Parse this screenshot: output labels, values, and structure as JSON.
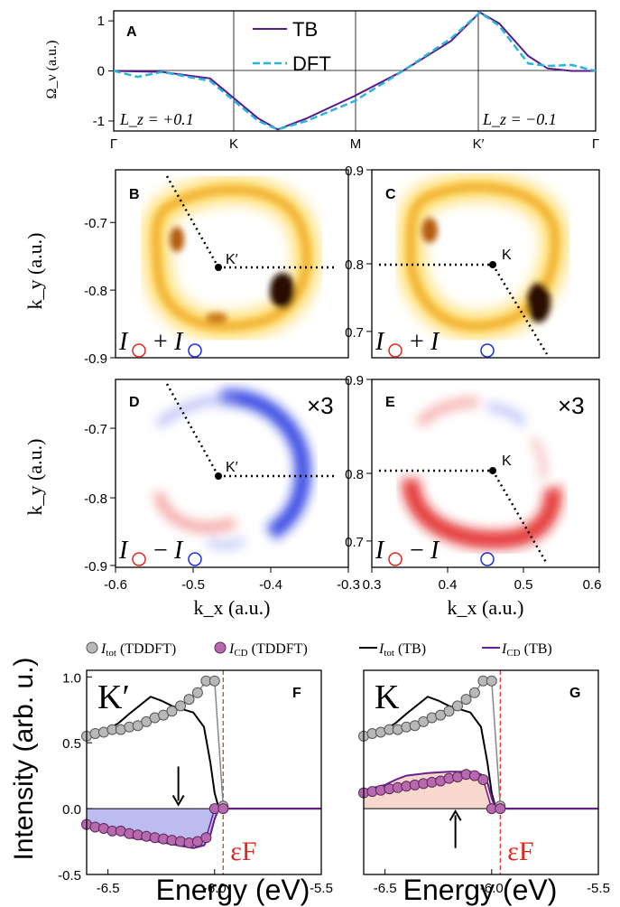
{
  "colors": {
    "tb": "#5b1a8a",
    "dft": "#29b5dd",
    "cd_tb": "#6a1f8f",
    "cd_fill_neg": "#6b6be0",
    "cd_fill_pos": "#f0a98f",
    "grey_marker": "#b8b8b8",
    "pink_marker": "#b768ae",
    "fermi": "#e0281e",
    "blue": "#1a2fe0",
    "red": "#e01818"
  },
  "chart_data": [
    {
      "panel": "A",
      "type": "line",
      "ylabel": "Ω_ν (a.u.)",
      "ylim": [
        -1.2,
        1.2
      ],
      "yticks": [
        "1",
        "0",
        "-1"
      ],
      "xticks": [
        "Γ",
        "K",
        "M",
        "K′",
        "Γ"
      ],
      "annotations": {
        "left": "L_z = +0.1",
        "right": "L_z = −0.1"
      },
      "series": [
        {
          "name": "TB",
          "x": [
            0,
            0.1,
            0.2,
            0.3,
            0.34,
            0.4,
            0.5,
            0.6,
            0.7,
            0.76,
            0.8,
            0.86,
            0.9,
            0.95,
            1
          ],
          "y": [
            0,
            -0.02,
            -0.15,
            -0.95,
            -1.17,
            -0.95,
            -0.5,
            0,
            0.6,
            1.17,
            0.95,
            0.3,
            0.05,
            0.0,
            0
          ]
        },
        {
          "name": "DFT",
          "x": [
            0,
            0.05,
            0.1,
            0.2,
            0.3,
            0.34,
            0.4,
            0.5,
            0.6,
            0.7,
            0.76,
            0.8,
            0.86,
            0.9,
            0.95,
            1
          ],
          "y": [
            0,
            -0.12,
            -0.02,
            -0.2,
            -1.0,
            -1.17,
            -1.0,
            -0.6,
            0,
            0.65,
            1.17,
            0.9,
            0.15,
            0.1,
            0.12,
            0
          ]
        }
      ]
    },
    {
      "panel": "B",
      "type": "heatmap",
      "xlim": [
        -0.6,
        -0.3
      ],
      "ylim": [
        -0.9,
        -0.63
      ],
      "yticks": [
        "-0.7",
        "-0.8",
        "-0.9"
      ],
      "ylabel": "k_y (a.u.)",
      "point": "K′",
      "legend": "I + I"
    },
    {
      "panel": "C",
      "type": "heatmap",
      "xlim": [
        0.3,
        0.6
      ],
      "ylim": [
        0.63,
        0.9
      ],
      "yticks": [
        "0.9",
        "0.8",
        "0.7"
      ],
      "point": "K",
      "legend": "I + I"
    },
    {
      "panel": "D",
      "type": "heatmap",
      "xlim": [
        -0.6,
        -0.3
      ],
      "ylim": [
        -0.9,
        -0.63
      ],
      "xticks": [
        "-0.6",
        "-0.5",
        "-0.4",
        "-0.3"
      ],
      "yticks": [
        "-0.7",
        "-0.8",
        "-0.9"
      ],
      "xlabel": "k_x (a.u.)",
      "ylabel": "k_y (a.u.)",
      "point": "K′",
      "scale": "×3",
      "legend": "I − I"
    },
    {
      "panel": "E",
      "type": "heatmap",
      "xlim": [
        0.3,
        0.6
      ],
      "ylim": [
        0.63,
        0.9
      ],
      "xticks": [
        "0.3",
        "0.4",
        "0.5",
        "0.6"
      ],
      "yticks": [
        "0.9",
        "0.8",
        "0.7"
      ],
      "xlabel": "k_x (a.u.)",
      "point": "K",
      "scale": "×3",
      "legend": "I − I"
    },
    {
      "panel": "F",
      "type": "line",
      "valley": "K′",
      "xlim": [
        -6.6,
        -5.5
      ],
      "ylim": [
        -0.5,
        1.05
      ],
      "xticks": [
        "-6.5",
        "-6.0",
        "-5.5"
      ],
      "yticks": [
        "1.0",
        "0.5",
        "0.0",
        "-0.5"
      ],
      "xlabel": "Energy (eV)",
      "ylabel": "Intensity (arb. u.)",
      "fermi_label": "εF",
      "series": [
        {
          "name": "I_tot (TDDFT)",
          "x": [
            -6.6,
            -6.56,
            -6.52,
            -6.48,
            -6.44,
            -6.4,
            -6.36,
            -6.32,
            -6.28,
            -6.24,
            -6.2,
            -6.16,
            -6.12,
            -6.08,
            -6.04,
            -6.0,
            -5.96
          ],
          "y": [
            0.55,
            0.57,
            0.58,
            0.6,
            0.6,
            0.62,
            0.63,
            0.66,
            0.69,
            0.71,
            0.74,
            0.78,
            0.83,
            0.88,
            0.97,
            0.97,
            0.02
          ]
        },
        {
          "name": "I_CD (TDDFT)",
          "x": [
            -6.6,
            -6.56,
            -6.52,
            -6.48,
            -6.44,
            -6.4,
            -6.36,
            -6.32,
            -6.28,
            -6.24,
            -6.2,
            -6.16,
            -6.12,
            -6.08,
            -6.04,
            -6.0,
            -5.96
          ],
          "y": [
            -0.12,
            -0.14,
            -0.15,
            -0.17,
            -0.17,
            -0.19,
            -0.2,
            -0.21,
            -0.22,
            -0.23,
            -0.24,
            -0.25,
            -0.26,
            -0.25,
            -0.22,
            0.0,
            0.0
          ]
        },
        {
          "name": "I_tot (TB)",
          "x": [
            -6.6,
            -6.5,
            -6.45,
            -6.4,
            -6.3,
            -6.25,
            -6.2,
            -6.1,
            -6.05,
            -6.02,
            -6.0,
            -5.98,
            -5.95,
            -5.5
          ],
          "y": [
            0.55,
            0.6,
            0.65,
            0.72,
            0.85,
            0.82,
            0.78,
            0.73,
            0.62,
            0.35,
            0.12,
            0.0,
            0.0,
            0.0
          ]
        },
        {
          "name": "I_CD (TB)",
          "x": [
            -6.6,
            -6.5,
            -6.45,
            -6.4,
            -6.3,
            -6.2,
            -6.1,
            -6.05,
            -6.02,
            -6.0,
            -5.98,
            -5.95,
            -5.5
          ],
          "y": [
            -0.12,
            -0.14,
            -0.18,
            -0.22,
            -0.24,
            -0.27,
            -0.3,
            -0.28,
            -0.2,
            -0.08,
            0.0,
            0.0,
            0.0
          ]
        }
      ]
    },
    {
      "panel": "G",
      "type": "line",
      "valley": "K",
      "xlim": [
        -6.6,
        -5.5
      ],
      "ylim": [
        -0.5,
        1.05
      ],
      "xticks": [
        "-6.5",
        "-6.0",
        "-5.5"
      ],
      "xlabel": "Energy (eV)",
      "fermi_label": "εF",
      "series": [
        {
          "name": "I_tot (TDDFT)",
          "x": [
            -6.6,
            -6.56,
            -6.52,
            -6.48,
            -6.44,
            -6.4,
            -6.36,
            -6.32,
            -6.28,
            -6.24,
            -6.2,
            -6.16,
            -6.12,
            -6.08,
            -6.04,
            -6.0,
            -5.96
          ],
          "y": [
            0.55,
            0.57,
            0.58,
            0.6,
            0.6,
            0.62,
            0.63,
            0.66,
            0.69,
            0.71,
            0.74,
            0.78,
            0.83,
            0.88,
            0.97,
            0.97,
            0.02
          ]
        },
        {
          "name": "I_CD (TDDFT)",
          "x": [
            -6.6,
            -6.56,
            -6.52,
            -6.48,
            -6.44,
            -6.4,
            -6.36,
            -6.32,
            -6.28,
            -6.24,
            -6.2,
            -6.16,
            -6.12,
            -6.08,
            -6.04,
            -6.0,
            -5.96
          ],
          "y": [
            0.12,
            0.13,
            0.14,
            0.15,
            0.16,
            0.17,
            0.18,
            0.19,
            0.2,
            0.21,
            0.23,
            0.24,
            0.26,
            0.25,
            0.22,
            0.0,
            0.0
          ]
        },
        {
          "name": "I_tot (TB)",
          "x": [
            -6.6,
            -6.5,
            -6.45,
            -6.4,
            -6.3,
            -6.25,
            -6.2,
            -6.1,
            -6.05,
            -6.02,
            -6.0,
            -5.98,
            -5.95,
            -5.5
          ],
          "y": [
            0.55,
            0.6,
            0.65,
            0.72,
            0.85,
            0.82,
            0.78,
            0.73,
            0.62,
            0.35,
            0.12,
            0.0,
            0.0,
            0.0
          ]
        },
        {
          "name": "I_CD (TB)",
          "x": [
            -6.6,
            -6.5,
            -6.45,
            -6.4,
            -6.3,
            -6.2,
            -6.1,
            -6.05,
            -6.02,
            -6.0,
            -5.98,
            -5.95,
            -5.5
          ],
          "y": [
            0.14,
            0.18,
            0.22,
            0.25,
            0.27,
            0.28,
            0.28,
            0.26,
            0.2,
            0.08,
            0.0,
            0.0,
            0.0
          ]
        }
      ]
    }
  ],
  "legend_bottom": [
    {
      "label": "I",
      "sub": "tot",
      "suffix": " (TDDFT)"
    },
    {
      "label": "I",
      "sub": "CD",
      "suffix": " (TDDFT)"
    },
    {
      "label": "I",
      "sub": "tot",
      "suffix": " (TB)"
    },
    {
      "label": "I",
      "sub": "CD",
      "suffix": " (TB)"
    }
  ]
}
